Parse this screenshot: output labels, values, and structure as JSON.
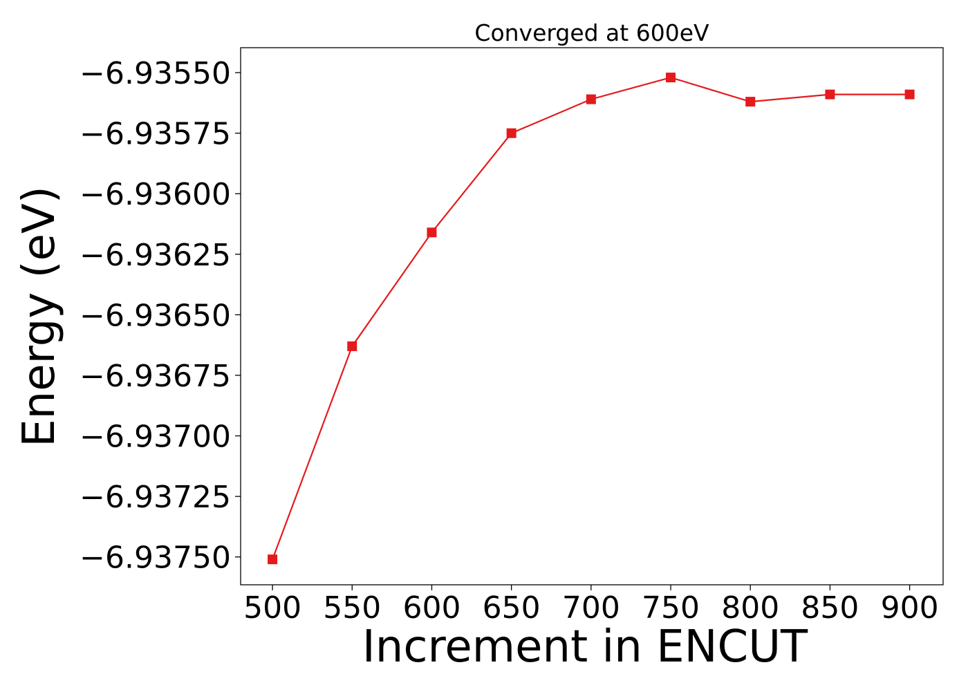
{
  "chart_data": {
    "type": "line",
    "title": "Converged at 600eV",
    "xlabel": "Increment in ENCUT",
    "ylabel": "Energy (eV)",
    "x": [
      500,
      550,
      600,
      650,
      700,
      750,
      800,
      850,
      900
    ],
    "xlim": [
      480,
      921
    ],
    "ylim": [
      -6.937615,
      -6.935397
    ],
    "xticks": [
      500,
      550,
      600,
      650,
      700,
      750,
      800,
      850,
      900
    ],
    "yticks": [
      -6.9355,
      -6.93575,
      -6.936,
      -6.93625,
      -6.9365,
      -6.93675,
      -6.937,
      -6.93725,
      -6.9375
    ],
    "xtick_labels": [
      "500",
      "550",
      "600",
      "650",
      "700",
      "750",
      "800",
      "850",
      "900"
    ],
    "ytick_labels": [
      "−6.93550",
      "−6.93575",
      "−6.93600",
      "−6.93625",
      "−6.93650",
      "−6.93675",
      "−6.93700",
      "−6.93725",
      "−6.93750"
    ],
    "series": [
      {
        "values": [
          -6.93751,
          -6.93663,
          -6.93616,
          -6.93575,
          -6.93561,
          -6.93552,
          -6.93562,
          -6.93559,
          -6.93559
        ],
        "color": "#e41a1c",
        "marker": "square"
      }
    ],
    "grid": false,
    "legend": "none"
  }
}
